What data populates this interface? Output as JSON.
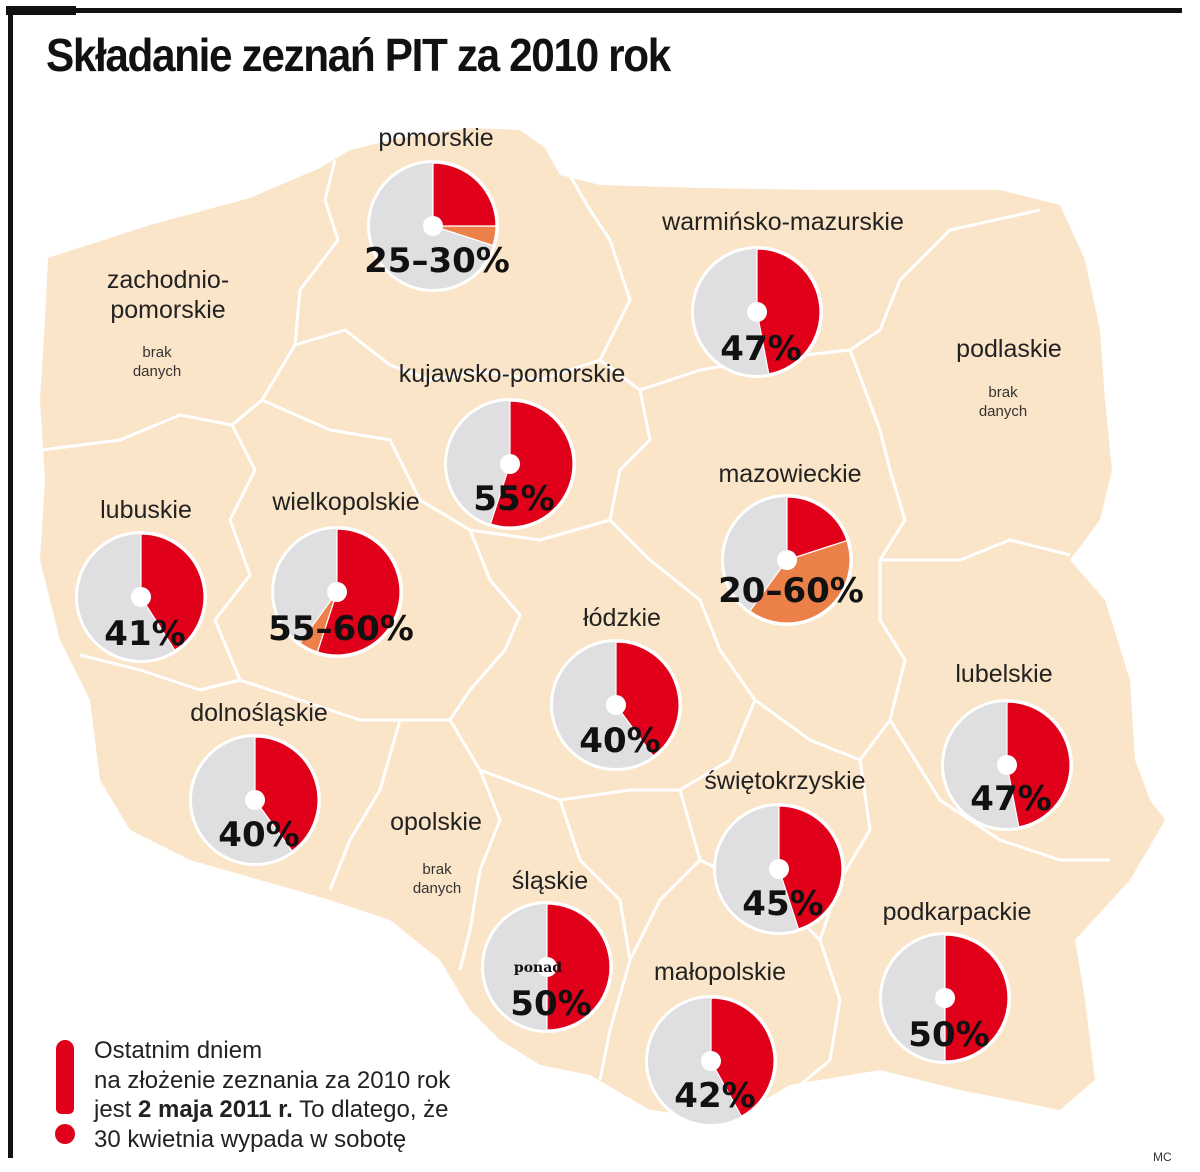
{
  "title": "Składanie zeznań PIT za 2010 rok",
  "legend_colors": {
    "filed": "#e0001a",
    "range": "#ec8049",
    "remaining": "#dfdfe1",
    "land": "#fbe5c8",
    "border": "#ffffff"
  },
  "regions": [
    {
      "id": "pomorskie",
      "label": [
        "pomorskie"
      ],
      "value_text": "25–30%",
      "red": 25,
      "orange": 5
    },
    {
      "id": "zachodniopomorskie",
      "label": [
        "zachodnio-",
        "pomorskie"
      ],
      "no_data": [
        "brak",
        "danych"
      ]
    },
    {
      "id": "warminsko-mazurskie",
      "label": [
        "warmińsko-mazurskie"
      ],
      "value_text": "47%",
      "red": 47,
      "orange": 0
    },
    {
      "id": "podlaskie",
      "label": [
        "podlaskie"
      ],
      "no_data": [
        "brak",
        "danych"
      ]
    },
    {
      "id": "kujawsko-pomorskie",
      "label": [
        "kujawsko-pomorskie"
      ],
      "value_text": "55%",
      "red": 55,
      "orange": 0
    },
    {
      "id": "mazowieckie",
      "label": [
        "mazowieckie"
      ],
      "value_text": "20–60%",
      "red": 20,
      "orange": 40
    },
    {
      "id": "lubuskie",
      "label": [
        "lubuskie"
      ],
      "value_text": "41%",
      "red": 41,
      "orange": 0
    },
    {
      "id": "wielkopolskie",
      "label": [
        "wielkopolskie"
      ],
      "value_text": "55–60%",
      "red": 55,
      "orange": 5
    },
    {
      "id": "lodzkie",
      "label": [
        "łódzkie"
      ],
      "value_text": "40%",
      "red": 40,
      "orange": 0
    },
    {
      "id": "lubelskie",
      "label": [
        "lubelskie"
      ],
      "value_text": "47%",
      "red": 47,
      "orange": 0
    },
    {
      "id": "dolnoslaskie",
      "label": [
        "dolnośląskie"
      ],
      "value_text": "40%",
      "red": 40,
      "orange": 0
    },
    {
      "id": "swietokrzyskie",
      "label": [
        "świętokrzyskie"
      ],
      "value_text": "45%",
      "red": 45,
      "orange": 0
    },
    {
      "id": "opolskie",
      "label": [
        "opolskie"
      ],
      "no_data": [
        "brak",
        "danych"
      ]
    },
    {
      "id": "slaskie",
      "label": [
        "śląskie"
      ],
      "value_prefix": "ponad",
      "value_text": "50%",
      "red": 50,
      "orange": 0
    },
    {
      "id": "podkarpackie",
      "label": [
        "podkarpackie"
      ],
      "value_text": "50%",
      "red": 50,
      "orange": 0
    },
    {
      "id": "malopolskie",
      "label": [
        "małopolskie"
      ],
      "value_text": "42%",
      "red": 42,
      "orange": 0
    }
  ],
  "note": {
    "line1": "Ostatnim dniem",
    "line2": "na złożenie zeznania za 2010 rok",
    "line3_pre": "jest ",
    "line3_bold": "2 maja 2011 r.",
    "line3_post": " To dlatego, że",
    "line4": "30 kwietnia wypada w sobotę"
  },
  "credit": "MC"
}
